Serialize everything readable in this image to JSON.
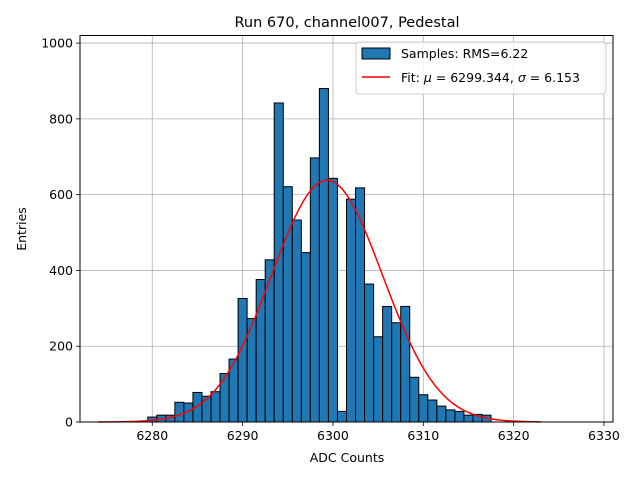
{
  "chart_data": {
    "type": "bar",
    "title": "Run 670, channel007, Pedestal",
    "xlabel": "ADC Counts",
    "ylabel": "Entries",
    "xlim": [
      6272,
      6331
    ],
    "ylim": [
      0,
      1020
    ],
    "grid": true,
    "x_ticks": [
      "6280",
      "6290",
      "6300",
      "6310",
      "6320",
      "6330"
    ],
    "y_ticks": [
      "0",
      "200",
      "400",
      "600",
      "800",
      "1000"
    ],
    "legend_position": "upper-right",
    "histogram": {
      "name": "Samples: RMS=6.22",
      "bin_width": 1,
      "bins": [
        6280,
        6281,
        6282,
        6283,
        6284,
        6285,
        6286,
        6287,
        6288,
        6289,
        6290,
        6291,
        6292,
        6293,
        6294,
        6295,
        6296,
        6297,
        6298,
        6299,
        6300,
        6301,
        6302,
        6303,
        6304,
        6305,
        6306,
        6307,
        6308,
        6309,
        6310,
        6311,
        6312,
        6313,
        6314,
        6315,
        6316,
        6317,
        6318
      ],
      "values": [
        13,
        18,
        18,
        52,
        50,
        78,
        68,
        80,
        128,
        166,
        326,
        273,
        376,
        428,
        842,
        621,
        533,
        447,
        697,
        880,
        643,
        28,
        588,
        618,
        364,
        225,
        305,
        262,
        305,
        118,
        72,
        58,
        42,
        32,
        28,
        18,
        20,
        18,
        0
      ],
      "color": "#1f77b4",
      "edge_color": "#000000"
    },
    "fit": {
      "name": "Fit: $\\mu$ = 6299.344, $\\sigma$ = 6.153",
      "mu": 6299.344,
      "sigma": 6.153,
      "amplitude": 638,
      "x_range": [
        6274,
        6323
      ],
      "color": "#ff0000"
    },
    "legend": [
      {
        "label": "Samples: RMS=6.22",
        "kind": "patch",
        "color": "#1f77b4"
      },
      {
        "label_prefix": "Fit: ",
        "mu_symbol": "μ",
        "mu_text": " = 6299.344, ",
        "sigma_symbol": "σ",
        "sigma_text": " = 6.153",
        "kind": "line",
        "color": "#ff0000"
      }
    ]
  }
}
